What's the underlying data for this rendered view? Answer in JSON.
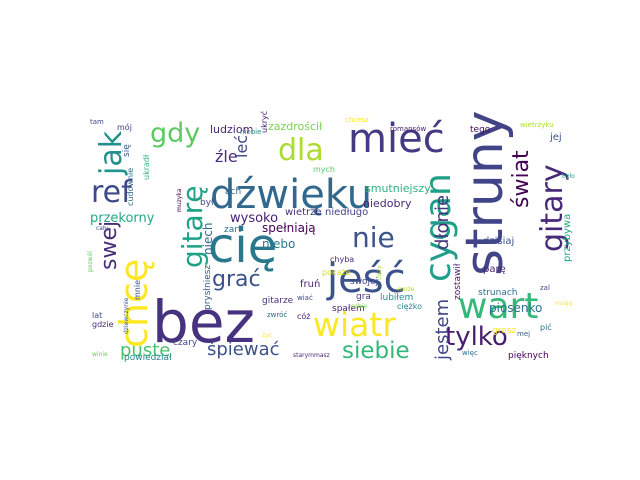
{
  "word_cloud": {
    "words": [
      {
        "text": "bez",
        "color": "#46327e"
      },
      {
        "text": "struny",
        "color": "#414487"
      },
      {
        "text": "chcę",
        "color": "#fde725"
      },
      {
        "text": "dźwięku",
        "color": "#31688e"
      },
      {
        "text": "cię",
        "color": "#2a788e"
      },
      {
        "text": "mieć",
        "color": "#443983"
      },
      {
        "text": "jeść",
        "color": "#3b528b"
      },
      {
        "text": "cygan",
        "color": "#1f9e89"
      },
      {
        "text": "gitary",
        "color": "#482878"
      },
      {
        "text": "wiatr",
        "color": "#fde725"
      },
      {
        "text": "wart",
        "color": "#35b779"
      },
      {
        "text": "gitarę",
        "color": "#1fa187"
      },
      {
        "text": "dla",
        "color": "#addc30"
      },
      {
        "text": "ref",
        "color": "#3e4989"
      },
      {
        "text": "jak",
        "color": "#21918c"
      },
      {
        "text": "gdy",
        "color": "#5ec962"
      },
      {
        "text": "nie",
        "color": "#3b528b"
      },
      {
        "text": "tylko",
        "color": "#481f70"
      },
      {
        "text": "siebie",
        "color": "#35b779"
      },
      {
        "text": "świat",
        "color": "#440154"
      },
      {
        "text": "swej",
        "color": "#472d7b"
      },
      {
        "text": "grać",
        "color": "#3b528b"
      },
      {
        "text": "dłonie",
        "color": "#46337e"
      },
      {
        "text": "jestem",
        "color": "#404688"
      },
      {
        "text": "śpiewać",
        "color": "#3b528b"
      },
      {
        "text": "puste",
        "color": "#4ac16d"
      },
      {
        "text": "źle",
        "color": "#472a7a"
      },
      {
        "text": "leć",
        "color": "#3e4a89"
      },
      {
        "text": "przekorny",
        "color": "#22a884"
      },
      {
        "text": "wysoko",
        "color": "#482173"
      },
      {
        "text": "piosenko",
        "color": "#2c728e"
      },
      {
        "text": "ludziom",
        "color": "#482475"
      },
      {
        "text": "zazdrościł",
        "color": "#7ad151"
      },
      {
        "text": "smutniejszy",
        "color": "#2db27d"
      },
      {
        "text": "niedobry",
        "color": "#482878"
      },
      {
        "text": "był",
        "color": "#3e4989"
      },
      {
        "text": "niebo",
        "color": "#2a788e"
      },
      {
        "text": "niech",
        "color": "#2f6c8e"
      },
      {
        "text": "spełniają",
        "color": "#440154"
      },
      {
        "text": "wietrze",
        "color": "#472f7d"
      },
      {
        "text": "niedługo",
        "color": "#404688"
      },
      {
        "text": "dzisiaj",
        "color": "#3a548c"
      },
      {
        "text": "przybywa",
        "color": "#22a884"
      },
      {
        "text": "zostawił",
        "color": "#481b6d"
      },
      {
        "text": "strunach",
        "color": "#2e6e8e"
      },
      {
        "text": "parę",
        "color": "#482475"
      },
      {
        "text": "tego",
        "color": "#46085c"
      },
      {
        "text": "jej",
        "color": "#3b528b"
      },
      {
        "text": "ach",
        "color": "#31688e"
      },
      {
        "text": "mych",
        "color": "#5ec962"
      },
      {
        "text": "ukryć",
        "color": "#482071"
      },
      {
        "text": "chcesz",
        "color": "#fde725"
      },
      {
        "text": "romansów",
        "color": "#481d6f"
      },
      {
        "text": "wietrzyku",
        "color": "#addc30"
      },
      {
        "text": "mój",
        "color": "#443b84"
      },
      {
        "text": "tam",
        "color": "#3e4989"
      },
      {
        "text": "się",
        "color": "#38588c"
      },
      {
        "text": "ukradł",
        "color": "#2fb47c"
      },
      {
        "text": "cudownie",
        "color": "#306a8e"
      },
      {
        "text": "muzyka",
        "color": "#440154"
      },
      {
        "text": "prysłniesz",
        "color": "#375a8c"
      },
      {
        "text": "zart",
        "color": "#2c718e"
      },
      {
        "text": "fruń",
        "color": "#482576"
      },
      {
        "text": "pokaże",
        "color": "#d8e219"
      },
      {
        "text": "chyba",
        "color": "#472c7a"
      },
      {
        "text": "swojej",
        "color": "#3f4788"
      },
      {
        "text": "spałem",
        "color": "#481f70"
      },
      {
        "text": "gitarze",
        "color": "#46327e"
      },
      {
        "text": "wiać",
        "color": "#3f4889"
      },
      {
        "text": "gra",
        "color": "#46327e"
      },
      {
        "text": "lubiłem",
        "color": "#21918c"
      },
      {
        "text": "grosz",
        "color": "#fde725"
      },
      {
        "text": "cóż",
        "color": "#482173"
      },
      {
        "text": "zwróć",
        "color": "#2e6e8e"
      },
      {
        "text": "ciężko",
        "color": "#24868e"
      },
      {
        "text": "pięknych",
        "color": "#440154"
      },
      {
        "text": "więc",
        "color": "#2d708e"
      },
      {
        "text": "mnie",
        "color": "#3b528b"
      },
      {
        "text": "gdzie",
        "color": "#472878"
      },
      {
        "text": "lat",
        "color": "#3e4a89"
      },
      {
        "text": "czary",
        "color": "#3e4989"
      },
      {
        "text": "powiedział",
        "color": "#24868e"
      },
      {
        "text": "starym",
        "color": "#472c7a"
      },
      {
        "text": "masz",
        "color": "#482475"
      },
      {
        "text": "winie",
        "color": "#6ccd5a"
      },
      {
        "text": "dziewczynie",
        "color": "#39568c"
      },
      {
        "text": "pozwól",
        "color": "#5ec962"
      },
      {
        "text": "cały",
        "color": "#414487"
      },
      {
        "text": "pić",
        "color": "#2e6e8e"
      },
      {
        "text": "zal",
        "color": "#3e4989"
      },
      {
        "text": "mogą",
        "color": "#fde725"
      },
      {
        "text": "było",
        "color": "#1f9e89"
      },
      {
        "text": "niebie",
        "color": "#21918c"
      },
      {
        "text": "mej",
        "color": "#355f8d"
      },
      {
        "text": "sobie",
        "color": "#7ad151"
      },
      {
        "text": "może",
        "color": "#b5de2b"
      },
      {
        "text": "życ",
        "color": "#fde725"
      },
      {
        "text": "ciszy",
        "color": "#addc30"
      }
    ]
  }
}
